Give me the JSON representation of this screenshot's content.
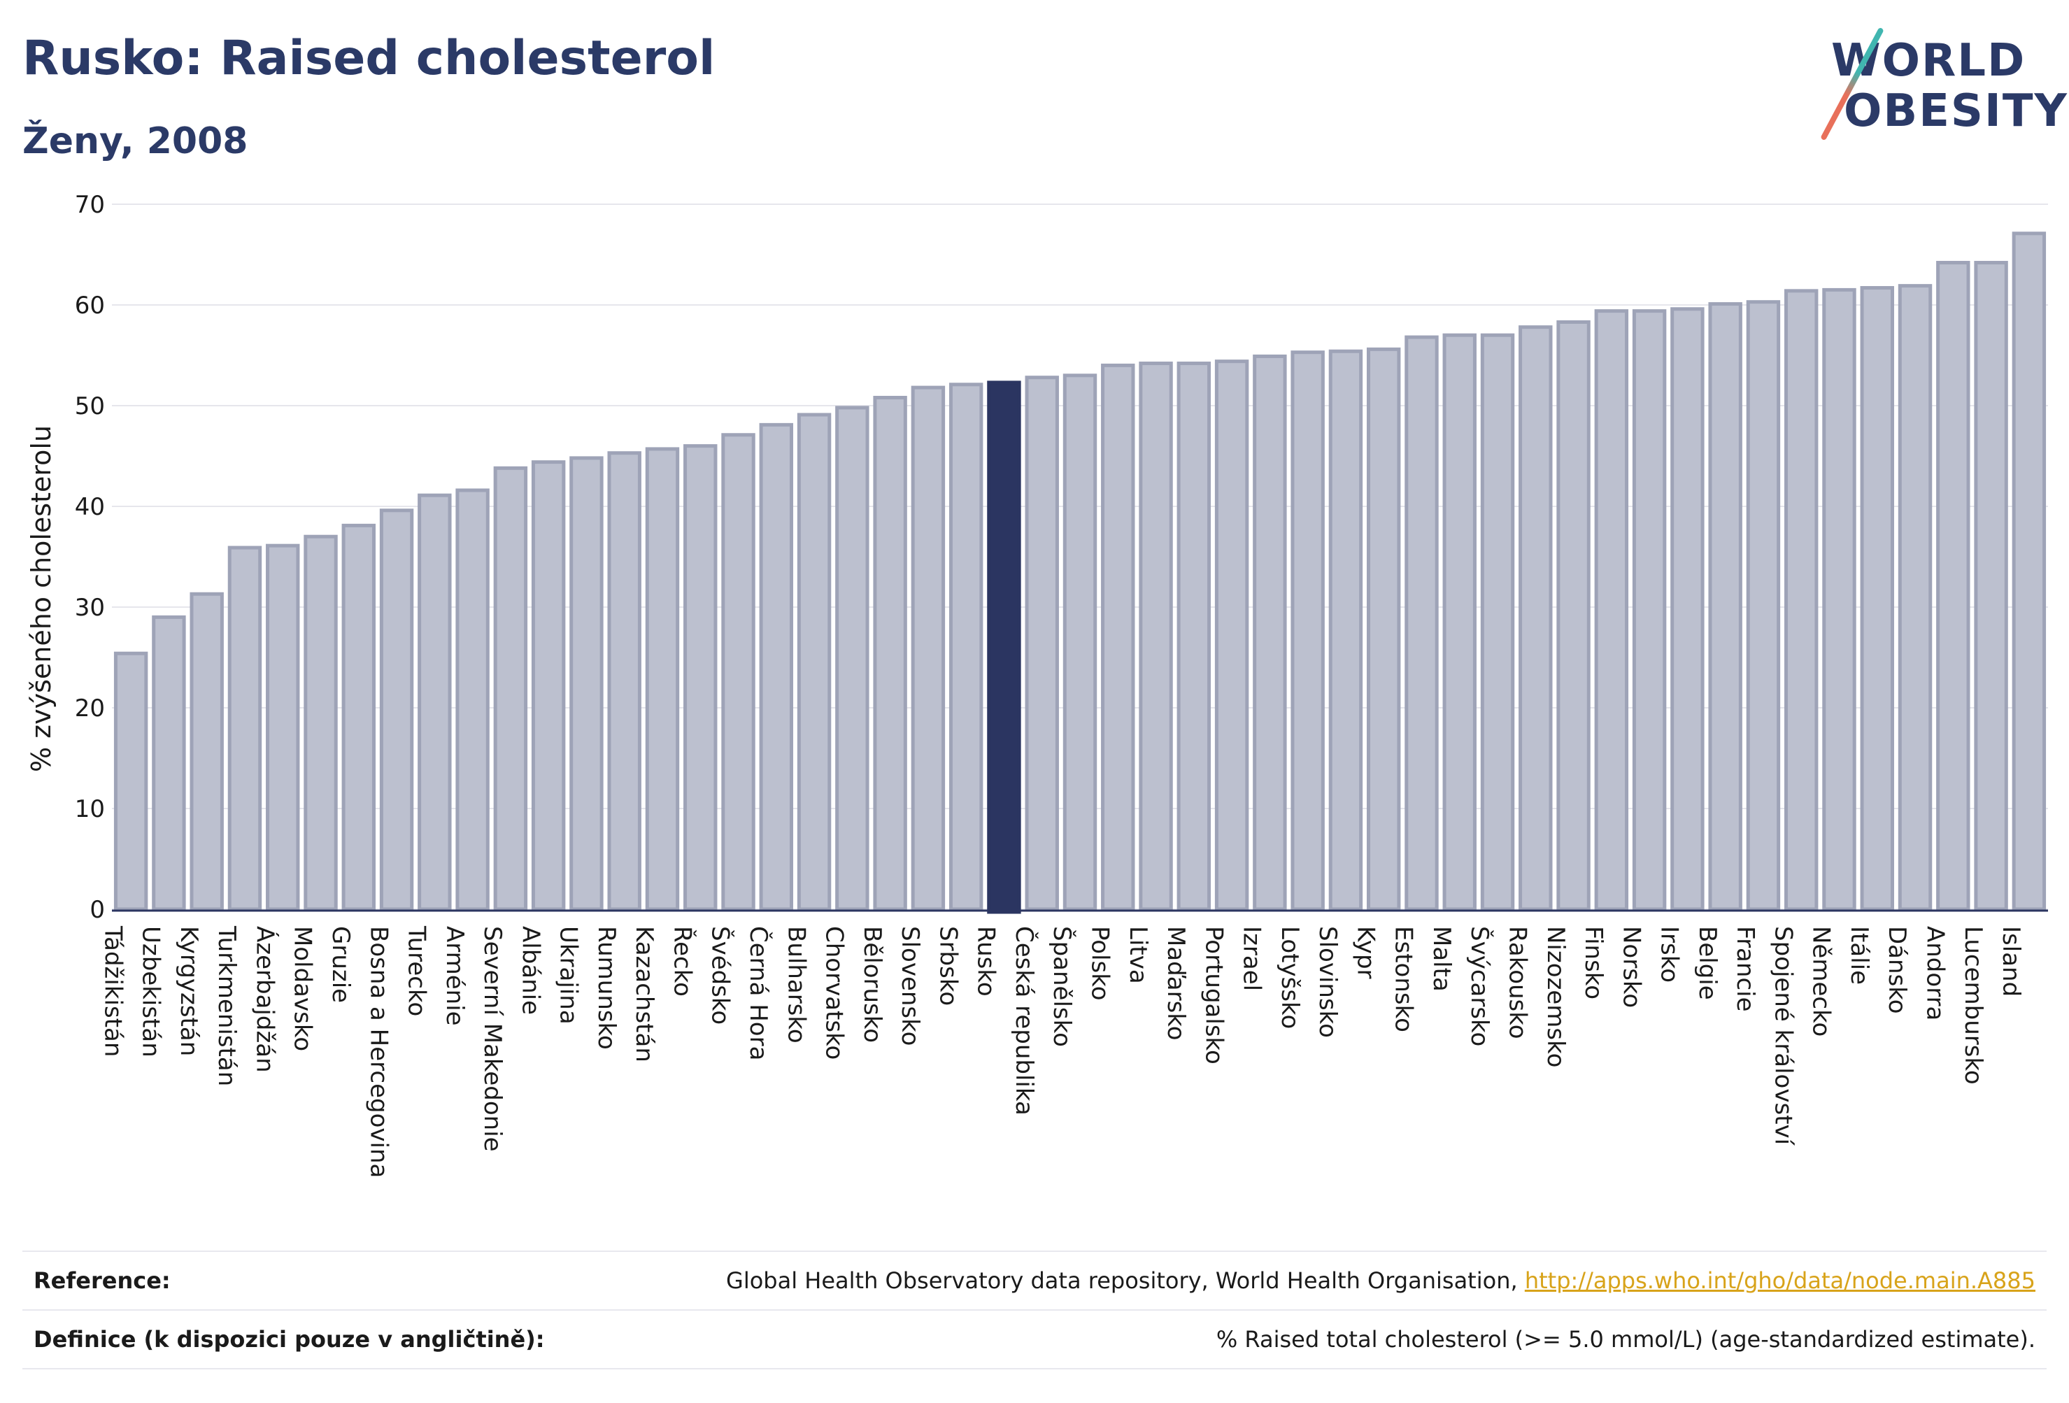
{
  "header": {
    "title": "Rusko: Raised cholesterol",
    "subtitle": "Ženy, 2008"
  },
  "logo": {
    "line1": "WORLD",
    "line2": "OBESITY"
  },
  "colors": {
    "bar": "#bcc0cf",
    "bar_stroke": "#9ea3b7",
    "highlight": "#2b3561",
    "title": "#2b3a67",
    "grid": "#e6e6ec"
  },
  "chart_data": {
    "type": "bar",
    "ylabel": "% zvýšeného cholesterolu",
    "ylim": [
      0,
      70
    ],
    "yticks": [
      0,
      10,
      20,
      30,
      40,
      50,
      60,
      70
    ],
    "grid": true,
    "highlight": "Rusko",
    "categories": [
      "Tádžikistán",
      "Uzbekistán",
      "Kyrgyzstán",
      "Turkmenistán",
      "Ázerbajdžán",
      "Moldavsko",
      "Gruzie",
      "Bosna a Hercegovina",
      "Turecko",
      "Arménie",
      "Severní Makedonie",
      "Albánie",
      "Ukrajina",
      "Rumunsko",
      "Kazachstán",
      "Řecko",
      "Švédsko",
      "Černá Hora",
      "Bulharsko",
      "Chorvatsko",
      "Bělorusko",
      "Slovensko",
      "Srbsko",
      "Rusko",
      "Česká republika",
      "Španělsko",
      "Polsko",
      "Litva",
      "Maďarsko",
      "Portugalsko",
      "Izrael",
      "Lotyšsko",
      "Slovinsko",
      "Kypr",
      "Estonsko",
      "Malta",
      "Švýcarsko",
      "Rakousko",
      "Nizozemsko",
      "Finsko",
      "Norsko",
      "Irsko",
      "Belgie",
      "Francie",
      "Spojené království",
      "Německo",
      "Itálie",
      "Dánsko",
      "Andorra",
      "Lucembursko",
      "Island"
    ],
    "values": [
      25.4,
      29.0,
      31.3,
      35.9,
      36.1,
      37.0,
      38.1,
      39.6,
      41.1,
      41.6,
      43.8,
      44.4,
      44.8,
      45.3,
      45.7,
      46.0,
      47.1,
      48.1,
      49.1,
      49.8,
      50.8,
      51.8,
      52.1,
      52.3,
      52.8,
      53.0,
      54.0,
      54.2,
      54.2,
      54.4,
      54.9,
      55.3,
      55.4,
      55.6,
      56.8,
      57.0,
      57.0,
      57.8,
      58.3,
      59.4,
      59.4,
      59.6,
      60.1,
      60.3,
      61.4,
      61.5,
      61.7,
      61.9,
      64.2,
      64.2,
      67.1
    ]
  },
  "footer": {
    "reference_label": "Reference:",
    "reference_text": "Global Health Observatory data repository, World Health Organisation,",
    "reference_link": "http://apps.who.int/gho/data/node.main.A885",
    "definition_label": "Definice (k dispozici pouze v angličtině):",
    "definition_text": "% Raised total cholesterol (>= 5.0 mmol/L) (age-standardized estimate)."
  }
}
